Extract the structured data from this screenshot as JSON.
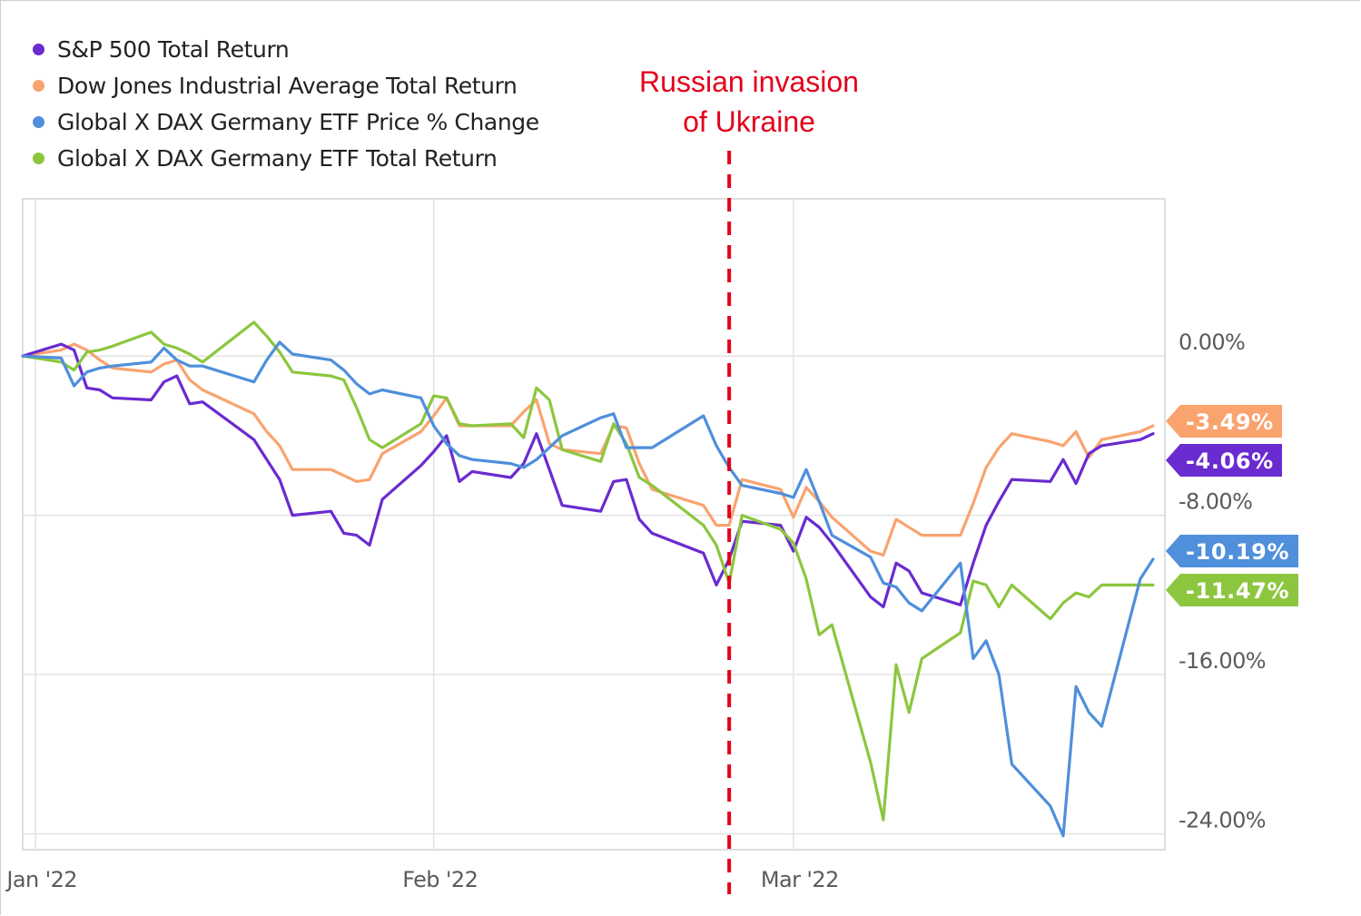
{
  "chart_data": {
    "type": "line",
    "title": "",
    "xlabel": "",
    "ylabel": "",
    "x_start": "2021-12-31",
    "x_end": "2022-03-30",
    "x_ticks": [
      {
        "label": "Jan '22",
        "date": "2022-01-01"
      },
      {
        "label": "Feb '22",
        "date": "2022-02-01"
      },
      {
        "label": "Mar '22",
        "date": "2022-03-01"
      }
    ],
    "ylim": [
      -24.8,
      7.9
    ],
    "y_ticks": [
      {
        "label": "0.00%",
        "value": 0
      },
      {
        "label": "-8.00%",
        "value": -8
      },
      {
        "label": "-16.00%",
        "value": -16
      },
      {
        "label": "-24.00%",
        "value": -24
      }
    ],
    "grid": true,
    "legend_position": "top-left",
    "annotation": {
      "text_line1": "Russian invasion",
      "text_line2": "of Ukraine",
      "date": "2022-02-24",
      "color": "#e3001b"
    },
    "series": [
      {
        "name": "S&P 500 Total Return",
        "color": "#6a2bd0",
        "end_label": "-4.06%",
        "points": [
          [
            "2021-12-31",
            0.0
          ],
          [
            "2022-01-03",
            0.6
          ],
          [
            "2022-01-04",
            0.3
          ],
          [
            "2022-01-05",
            -1.6
          ],
          [
            "2022-01-06",
            -1.7
          ],
          [
            "2022-01-07",
            -2.1
          ],
          [
            "2022-01-10",
            -2.2
          ],
          [
            "2022-01-11",
            -1.3
          ],
          [
            "2022-01-12",
            -1.0
          ],
          [
            "2022-01-13",
            -2.4
          ],
          [
            "2022-01-14",
            -2.3
          ],
          [
            "2022-01-18",
            -4.2
          ],
          [
            "2022-01-19",
            -5.2
          ],
          [
            "2022-01-20",
            -6.2
          ],
          [
            "2022-01-21",
            -8.0
          ],
          [
            "2022-01-24",
            -7.8
          ],
          [
            "2022-01-25",
            -8.9
          ],
          [
            "2022-01-26",
            -9.0
          ],
          [
            "2022-01-27",
            -9.5
          ],
          [
            "2022-01-28",
            -7.2
          ],
          [
            "2022-01-31",
            -5.5
          ],
          [
            "2022-02-01",
            -4.8
          ],
          [
            "2022-02-02",
            -4.0
          ],
          [
            "2022-02-03",
            -6.3
          ],
          [
            "2022-02-04",
            -5.8
          ],
          [
            "2022-02-07",
            -6.1
          ],
          [
            "2022-02-08",
            -5.4
          ],
          [
            "2022-02-09",
            -3.9
          ],
          [
            "2022-02-10",
            -5.7
          ],
          [
            "2022-02-11",
            -7.5
          ],
          [
            "2022-02-14",
            -7.8
          ],
          [
            "2022-02-15",
            -6.3
          ],
          [
            "2022-02-16",
            -6.2
          ],
          [
            "2022-02-17",
            -8.2
          ],
          [
            "2022-02-18",
            -8.9
          ],
          [
            "2022-02-22",
            -9.9
          ],
          [
            "2022-02-23",
            -11.5
          ],
          [
            "2022-02-24",
            -10.2
          ],
          [
            "2022-02-25",
            -8.3
          ],
          [
            "2022-02-28",
            -8.5
          ],
          [
            "2022-03-01",
            -9.8
          ],
          [
            "2022-03-02",
            -8.1
          ],
          [
            "2022-03-03",
            -8.6
          ],
          [
            "2022-03-04",
            -9.4
          ],
          [
            "2022-03-07",
            -12.1
          ],
          [
            "2022-03-08",
            -12.6
          ],
          [
            "2022-03-09",
            -10.4
          ],
          [
            "2022-03-10",
            -10.8
          ],
          [
            "2022-03-11",
            -11.9
          ],
          [
            "2022-03-14",
            -12.5
          ],
          [
            "2022-03-15",
            -10.4
          ],
          [
            "2022-03-16",
            -8.5
          ],
          [
            "2022-03-17",
            -7.3
          ],
          [
            "2022-03-18",
            -6.2
          ],
          [
            "2022-03-21",
            -6.3
          ],
          [
            "2022-03-22",
            -5.2
          ],
          [
            "2022-03-23",
            -6.4
          ],
          [
            "2022-03-24",
            -4.9
          ],
          [
            "2022-03-25",
            -4.5
          ],
          [
            "2022-03-28",
            -4.2
          ],
          [
            "2022-03-29",
            -3.9
          ]
        ]
      },
      {
        "name": "Dow Jones Industrial Average Total Return",
        "color": "#f9a36f",
        "end_label": "-3.49%",
        "points": [
          [
            "2021-12-31",
            0.0
          ],
          [
            "2022-01-03",
            0.3
          ],
          [
            "2022-01-04",
            0.6
          ],
          [
            "2022-01-05",
            0.3
          ],
          [
            "2022-01-06",
            -0.2
          ],
          [
            "2022-01-07",
            -0.6
          ],
          [
            "2022-01-10",
            -0.8
          ],
          [
            "2022-01-11",
            -0.4
          ],
          [
            "2022-01-12",
            -0.2
          ],
          [
            "2022-01-13",
            -1.2
          ],
          [
            "2022-01-14",
            -1.7
          ],
          [
            "2022-01-18",
            -2.9
          ],
          [
            "2022-01-19",
            -3.8
          ],
          [
            "2022-01-20",
            -4.5
          ],
          [
            "2022-01-21",
            -5.7
          ],
          [
            "2022-01-24",
            -5.7
          ],
          [
            "2022-01-25",
            -6.0
          ],
          [
            "2022-01-26",
            -6.3
          ],
          [
            "2022-01-27",
            -6.2
          ],
          [
            "2022-01-28",
            -4.9
          ],
          [
            "2022-01-31",
            -3.8
          ],
          [
            "2022-02-01",
            -3.0
          ],
          [
            "2022-02-02",
            -2.1
          ],
          [
            "2022-02-03",
            -3.5
          ],
          [
            "2022-02-04",
            -3.5
          ],
          [
            "2022-02-07",
            -3.5
          ],
          [
            "2022-02-08",
            -2.8
          ],
          [
            "2022-02-09",
            -2.2
          ],
          [
            "2022-02-10",
            -4.4
          ],
          [
            "2022-02-11",
            -4.7
          ],
          [
            "2022-02-14",
            -4.9
          ],
          [
            "2022-02-15",
            -3.5
          ],
          [
            "2022-02-16",
            -3.6
          ],
          [
            "2022-02-17",
            -5.4
          ],
          [
            "2022-02-18",
            -6.7
          ],
          [
            "2022-02-22",
            -7.5
          ],
          [
            "2022-02-23",
            -8.5
          ],
          [
            "2022-02-24",
            -8.5
          ],
          [
            "2022-02-25",
            -6.2
          ],
          [
            "2022-02-28",
            -6.7
          ],
          [
            "2022-03-01",
            -8.1
          ],
          [
            "2022-03-02",
            -6.6
          ],
          [
            "2022-03-03",
            -7.3
          ],
          [
            "2022-03-04",
            -8.1
          ],
          [
            "2022-03-07",
            -9.8
          ],
          [
            "2022-03-08",
            -10.0
          ],
          [
            "2022-03-09",
            -8.2
          ],
          [
            "2022-03-10",
            -8.6
          ],
          [
            "2022-03-11",
            -9.0
          ],
          [
            "2022-03-14",
            -9.0
          ],
          [
            "2022-03-15",
            -7.4
          ],
          [
            "2022-03-16",
            -5.6
          ],
          [
            "2022-03-17",
            -4.6
          ],
          [
            "2022-03-18",
            -3.9
          ],
          [
            "2022-03-21",
            -4.3
          ],
          [
            "2022-03-22",
            -4.5
          ],
          [
            "2022-03-23",
            -3.8
          ],
          [
            "2022-03-24",
            -5.1
          ],
          [
            "2022-03-25",
            -4.2
          ],
          [
            "2022-03-28",
            -3.8
          ],
          [
            "2022-03-29",
            -3.5
          ]
        ]
      },
      {
        "name": "Global X DAX Germany ETF Price % Change",
        "color": "#4f8fdb",
        "end_label": "-10.19%",
        "points": [
          [
            "2021-12-31",
            0.0
          ],
          [
            "2022-01-03",
            -0.1
          ],
          [
            "2022-01-04",
            -1.5
          ],
          [
            "2022-01-05",
            -0.8
          ],
          [
            "2022-01-06",
            -0.6
          ],
          [
            "2022-01-07",
            -0.5
          ],
          [
            "2022-01-10",
            -0.3
          ],
          [
            "2022-01-11",
            0.4
          ],
          [
            "2022-01-12",
            -0.2
          ],
          [
            "2022-01-13",
            -0.5
          ],
          [
            "2022-01-14",
            -0.5
          ],
          [
            "2022-01-18",
            -1.3
          ],
          [
            "2022-01-19",
            -0.2
          ],
          [
            "2022-01-20",
            0.7
          ],
          [
            "2022-01-21",
            0.1
          ],
          [
            "2022-01-24",
            -0.2
          ],
          [
            "2022-01-25",
            -0.7
          ],
          [
            "2022-01-26",
            -1.4
          ],
          [
            "2022-01-27",
            -1.9
          ],
          [
            "2022-01-28",
            -1.7
          ],
          [
            "2022-01-31",
            -2.1
          ],
          [
            "2022-02-01",
            -3.5
          ],
          [
            "2022-02-02",
            -4.4
          ],
          [
            "2022-02-03",
            -5.0
          ],
          [
            "2022-02-04",
            -5.2
          ],
          [
            "2022-02-07",
            -5.4
          ],
          [
            "2022-02-08",
            -5.6
          ],
          [
            "2022-02-09",
            -5.2
          ],
          [
            "2022-02-10",
            -4.6
          ],
          [
            "2022-02-11",
            -4.0
          ],
          [
            "2022-02-14",
            -3.1
          ],
          [
            "2022-02-15",
            -2.9
          ],
          [
            "2022-02-16",
            -4.6
          ],
          [
            "2022-02-17",
            -4.6
          ],
          [
            "2022-02-18",
            -4.6
          ],
          [
            "2022-02-22",
            -3.0
          ],
          [
            "2022-02-23",
            -4.5
          ],
          [
            "2022-02-24",
            -5.6
          ],
          [
            "2022-02-25",
            -6.5
          ],
          [
            "2022-02-28",
            -6.9
          ],
          [
            "2022-03-01",
            -7.1
          ],
          [
            "2022-03-02",
            -5.7
          ],
          [
            "2022-03-03",
            -7.3
          ],
          [
            "2022-03-04",
            -9.0
          ],
          [
            "2022-03-07",
            -10.1
          ],
          [
            "2022-03-08",
            -11.4
          ],
          [
            "2022-03-09",
            -11.6
          ],
          [
            "2022-03-10",
            -12.4
          ],
          [
            "2022-03-11",
            -12.8
          ],
          [
            "2022-03-14",
            -10.4
          ],
          [
            "2022-03-15",
            -15.2
          ],
          [
            "2022-03-16",
            -14.3
          ],
          [
            "2022-03-17",
            -16.0
          ],
          [
            "2022-03-18",
            -20.5
          ],
          [
            "2022-03-21",
            -22.6
          ],
          [
            "2022-03-22",
            -24.1
          ],
          [
            "2022-03-23",
            -16.6
          ],
          [
            "2022-03-24",
            -17.9
          ],
          [
            "2022-03-25",
            -18.6
          ],
          [
            "2022-03-28",
            -11.2
          ],
          [
            "2022-03-29",
            -10.2
          ]
        ]
      },
      {
        "name": "Global X DAX Germany ETF Total Return",
        "color": "#8cc63f",
        "end_label": "-11.47%",
        "points": [
          [
            "2021-12-31",
            0.0
          ],
          [
            "2022-01-03",
            -0.3
          ],
          [
            "2022-01-04",
            -0.7
          ],
          [
            "2022-01-05",
            0.2
          ],
          [
            "2022-01-06",
            0.3
          ],
          [
            "2022-01-07",
            0.5
          ],
          [
            "2022-01-10",
            1.2
          ],
          [
            "2022-01-11",
            0.6
          ],
          [
            "2022-01-12",
            0.4
          ],
          [
            "2022-01-13",
            0.1
          ],
          [
            "2022-01-14",
            -0.3
          ],
          [
            "2022-01-18",
            1.7
          ],
          [
            "2022-01-19",
            1.0
          ],
          [
            "2022-01-20",
            0.2
          ],
          [
            "2022-01-21",
            -0.8
          ],
          [
            "2022-01-24",
            -1.0
          ],
          [
            "2022-01-25",
            -1.2
          ],
          [
            "2022-01-26",
            -2.6
          ],
          [
            "2022-01-27",
            -4.2
          ],
          [
            "2022-01-28",
            -4.6
          ],
          [
            "2022-01-31",
            -3.4
          ],
          [
            "2022-02-01",
            -2.0
          ],
          [
            "2022-02-02",
            -2.1
          ],
          [
            "2022-02-03",
            -3.4
          ],
          [
            "2022-02-04",
            -3.5
          ],
          [
            "2022-02-07",
            -3.4
          ],
          [
            "2022-02-08",
            -4.1
          ],
          [
            "2022-02-09",
            -1.6
          ],
          [
            "2022-02-10",
            -2.2
          ],
          [
            "2022-02-11",
            -4.7
          ],
          [
            "2022-02-14",
            -5.3
          ],
          [
            "2022-02-15",
            -3.4
          ],
          [
            "2022-02-16",
            -4.4
          ],
          [
            "2022-02-17",
            -6.1
          ],
          [
            "2022-02-18",
            -6.5
          ],
          [
            "2022-02-22",
            -8.5
          ],
          [
            "2022-02-23",
            -9.5
          ],
          [
            "2022-02-24",
            -11.4
          ],
          [
            "2022-02-25",
            -8.0
          ],
          [
            "2022-02-28",
            -8.7
          ],
          [
            "2022-03-01",
            -9.4
          ],
          [
            "2022-03-02",
            -11.2
          ],
          [
            "2022-03-03",
            -14.0
          ],
          [
            "2022-03-04",
            -13.5
          ],
          [
            "2022-03-07",
            -20.4
          ],
          [
            "2022-03-08",
            -23.3
          ],
          [
            "2022-03-09",
            -15.5
          ],
          [
            "2022-03-10",
            -17.9
          ],
          [
            "2022-03-11",
            -15.2
          ],
          [
            "2022-03-14",
            -13.9
          ],
          [
            "2022-03-15",
            -11.3
          ],
          [
            "2022-03-16",
            -11.5
          ],
          [
            "2022-03-17",
            -12.6
          ],
          [
            "2022-03-18",
            -11.5
          ],
          [
            "2022-03-21",
            -13.2
          ],
          [
            "2022-03-22",
            -12.4
          ],
          [
            "2022-03-23",
            -11.9
          ],
          [
            "2022-03-24",
            -12.1
          ],
          [
            "2022-03-25",
            -11.5
          ],
          [
            "2022-03-28",
            -11.5
          ],
          [
            "2022-03-29",
            -11.5
          ]
        ]
      }
    ]
  }
}
